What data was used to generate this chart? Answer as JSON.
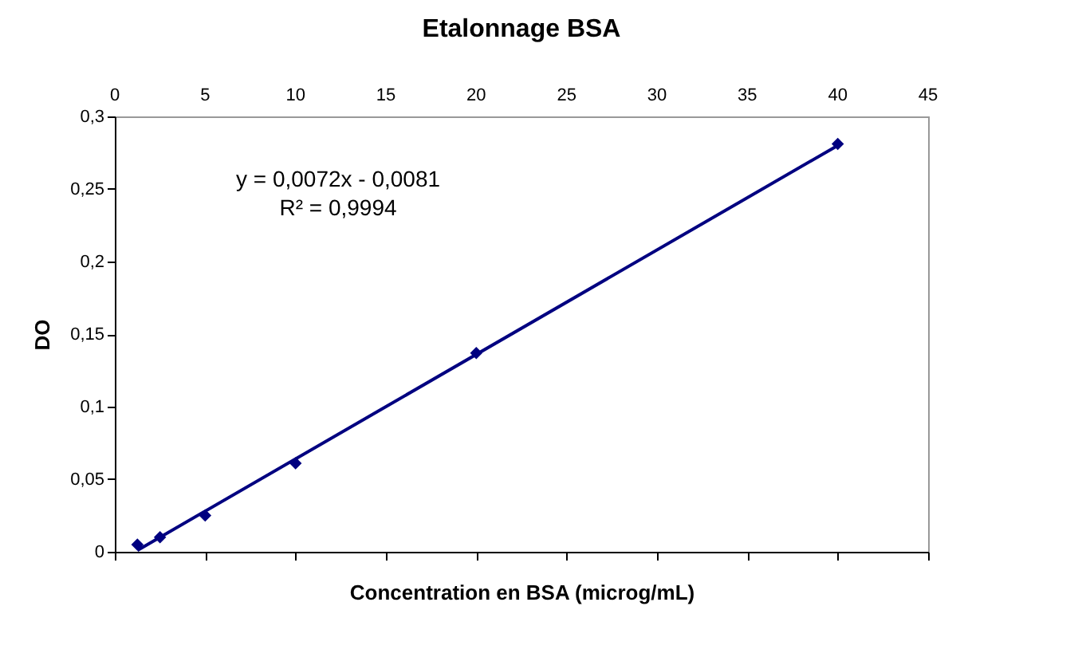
{
  "chart_data": {
    "type": "scatter",
    "title": "Etalonnage BSA",
    "xlabel": "Concentration en BSA (microg/mL)",
    "ylabel": "DO",
    "annotations": [
      "y = 0,0072x - 0,0081",
      "R² = 0,9994"
    ],
    "series": [
      {
        "type": "scatter",
        "color": "#000080",
        "x": [
          1.25,
          2.5,
          5,
          10,
          20,
          40
        ],
        "values": [
          0.005,
          0.01,
          0.025,
          0.061,
          0.137,
          0.281
        ],
        "marker": "diamond"
      },
      {
        "type": "line",
        "color": "#000080",
        "x": [
          1.25,
          40
        ],
        "values": [
          0.001,
          0.28
        ],
        "line_style": "solid"
      }
    ],
    "xlim": [
      0,
      45
    ],
    "xticks": [
      0,
      5,
      10,
      15,
      20,
      25,
      30,
      35,
      40,
      45
    ],
    "ylim": [
      0,
      0.3
    ],
    "yticks": [
      0,
      {
        "value": 0.05,
        "label": "0,05"
      },
      {
        "value": 0.1,
        "label": "0,1"
      },
      {
        "value": 0.15,
        "label": "0,15"
      },
      {
        "value": 0.2,
        "label": "0,2"
      },
      {
        "value": 0.25,
        "label": "0,25"
      },
      {
        "value": 0.3,
        "label": "0,3"
      }
    ],
    "grid": false
  }
}
